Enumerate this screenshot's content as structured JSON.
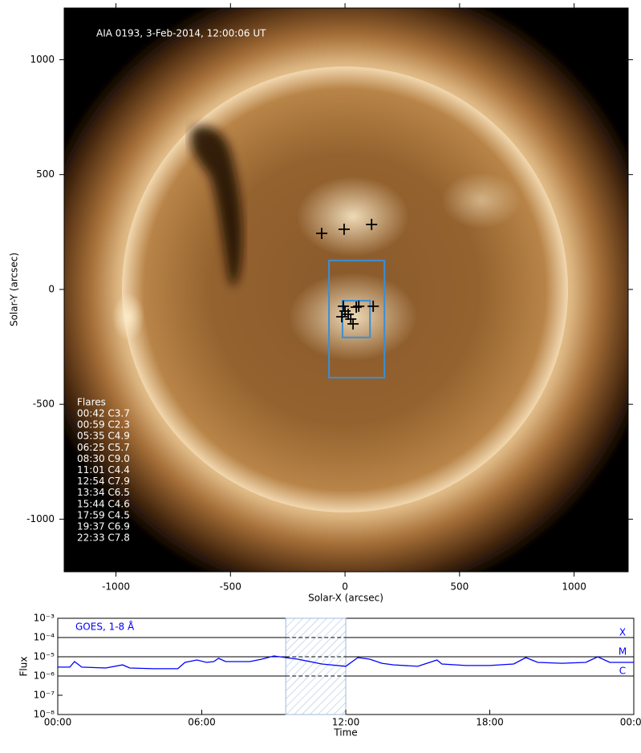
{
  "chart_data": [
    {
      "type": "image",
      "title": "AIA 0193, 3-Feb-2014, 12:00:06 UT",
      "xlabel": "Solar-X (arcsec)",
      "ylabel": "Solar-Y (arcsec)",
      "xlim": [
        -1226,
        1236
      ],
      "ylim": [
        -1229,
        1225
      ],
      "xticks": [
        -1000,
        -500,
        0,
        500,
        1000
      ],
      "yticks": [
        -1000,
        -500,
        0,
        500,
        1000
      ],
      "flares": {
        "title": "Flares",
        "entries": [
          "00:42 C3.7",
          "00:59 C2.3",
          "05:35 C4.9",
          "06:25 C5.7",
          "08:30 C9.0",
          "11:01 C4.4",
          "12:54 C7.9",
          "13:34 C6.5",
          "15:44 C4.6",
          "17:59 C4.5",
          "19:37 C6.9",
          "22:33 C7.8"
        ]
      },
      "markers": {
        "color": "#000000",
        "x": [
          -102,
          -4,
          116,
          -7,
          -14,
          49,
          60,
          123,
          25,
          35,
          0,
          14
        ],
        "y": [
          244,
          262,
          283,
          -73,
          -119,
          -77,
          -73,
          -73,
          -129,
          -150,
          -94,
          -108
        ]
      },
      "box_color": "#3a8fd6",
      "boxes": [
        {
          "xlim": [
            -70,
            172
          ],
          "ylim": [
            -384,
            126
          ]
        },
        {
          "xlim": [
            -11,
            109
          ],
          "ylim": [
            -209,
            -49
          ]
        }
      ]
    },
    {
      "type": "line",
      "title": "GOES, 1-8 Å",
      "xlabel": "Time",
      "ylabel": "Flux",
      "log_y": true,
      "xlim": [
        0,
        24
      ],
      "ylim": [
        1e-08,
        0.001
      ],
      "xticks": [
        {
          "value": 0,
          "label": "00:00"
        },
        {
          "value": 6,
          "label": "06:00"
        },
        {
          "value": 12,
          "label": "12:00"
        },
        {
          "value": 18,
          "label": "18:00"
        },
        {
          "value": 24,
          "label": "00:00"
        }
      ],
      "yticks": [
        {
          "value": 1e-08,
          "label": "10⁻⁸"
        },
        {
          "value": 1e-07,
          "label": "10⁻⁷"
        },
        {
          "value": 1e-06,
          "label": "10⁻⁶"
        },
        {
          "value": 1e-05,
          "label": "10⁻⁵"
        },
        {
          "value": 0.0001,
          "label": "10⁻⁴"
        },
        {
          "value": 0.001,
          "label": "10⁻³"
        }
      ],
      "levels": [
        {
          "value": 0.0001,
          "label": "X"
        },
        {
          "value": 1e-05,
          "label": "M"
        },
        {
          "value": 1e-06,
          "label": "C"
        }
      ],
      "shaded": [
        9.5,
        12
      ],
      "shade_color": "#9fb8d8",
      "series": [
        {
          "color": "#0000ff",
          "x": [
            0,
            0.5,
            0.7,
            1,
            2,
            2.7,
            3,
            4,
            5,
            5.3,
            5.8,
            6.2,
            6.5,
            6.7,
            7,
            8,
            8.5,
            9,
            9.5,
            10,
            11,
            12,
            12.5,
            13,
            13.5,
            14,
            15,
            15.8,
            16,
            17,
            18,
            19,
            19.5,
            20,
            21,
            22,
            22.5,
            23,
            24
          ],
          "values": [
            2.9e-06,
            2.9e-06,
            5.6e-06,
            2.9e-06,
            2.6e-06,
            3.8e-06,
            2.6e-06,
            2.4e-06,
            2.4e-06,
            5.1e-06,
            6.8e-06,
            5.1e-06,
            5.6e-06,
            8.3e-06,
            5.6e-06,
            5.6e-06,
            7.5e-06,
            1.1e-05,
            9.1e-06,
            7.5e-06,
            4.2e-06,
            3.2e-06,
            9.1e-06,
            7.5e-06,
            4.6e-06,
            3.8e-06,
            3.2e-06,
            6.8e-06,
            4.2e-06,
            3.5e-06,
            3.5e-06,
            4.2e-06,
            9.1e-06,
            5.1e-06,
            4.6e-06,
            5.1e-06,
            1e-05,
            5.1e-06,
            5.1e-06
          ]
        }
      ]
    }
  ]
}
